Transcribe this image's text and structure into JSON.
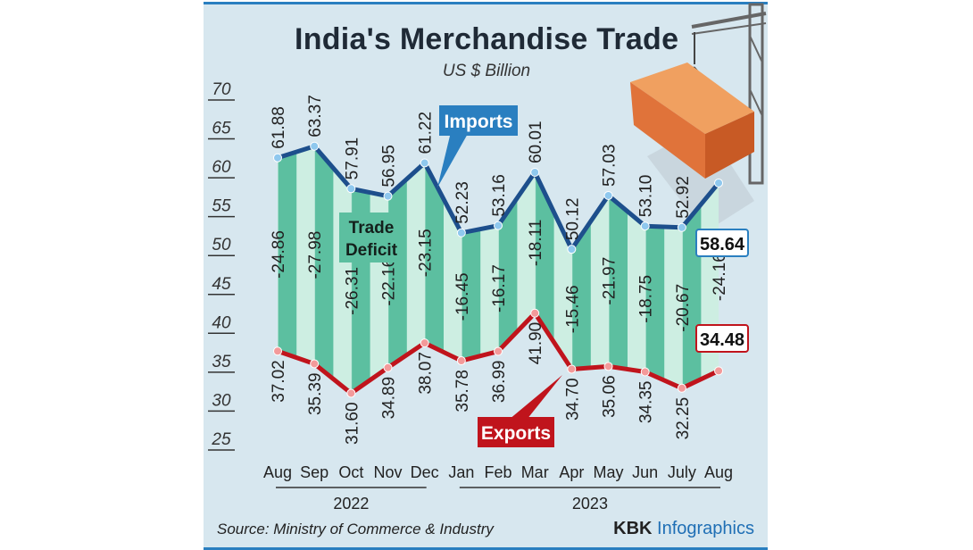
{
  "chart_data": {
    "type": "line",
    "title": "India's Merchandise Trade",
    "subtitle": "US $ Billion",
    "categories": [
      "Aug",
      "Sep",
      "Oct",
      "Nov",
      "Dec",
      "Jan",
      "Feb",
      "Mar",
      "Apr",
      "May",
      "Jun",
      "July",
      "Aug"
    ],
    "year_groups": [
      {
        "label": "2022",
        "from": 0,
        "to": 4
      },
      {
        "label": "2023",
        "from": 5,
        "to": 12
      }
    ],
    "ylim": [
      25,
      70
    ],
    "yticks": [
      70,
      65,
      60,
      55,
      50,
      45,
      40,
      35,
      30,
      25
    ],
    "series": [
      {
        "name": "Imports",
        "color": "#1d4f8c",
        "values": [
          61.88,
          63.37,
          57.91,
          56.95,
          61.22,
          52.23,
          53.16,
          60.01,
          50.12,
          57.03,
          53.1,
          52.92,
          58.64
        ],
        "labels": [
          "61.88",
          "63.37",
          "57.91",
          "56.95",
          "61.22",
          "52.23",
          "53.16",
          "60.01",
          "50.12",
          "57.03",
          "53.10",
          "52.92",
          "58.64"
        ]
      },
      {
        "name": "Exports",
        "color": "#c0141c",
        "values": [
          37.02,
          35.39,
          31.6,
          34.89,
          38.07,
          35.78,
          36.99,
          41.9,
          34.7,
          35.06,
          34.35,
          32.25,
          34.48
        ],
        "labels": [
          "37.02",
          "35.39",
          "31.60",
          "34.89",
          "38.07",
          "35.78",
          "36.99",
          "41.90",
          "34.70",
          "35.06",
          "34.35",
          "32.25",
          "34.48"
        ]
      },
      {
        "name": "Trade Deficit",
        "color": "#5cbfa0",
        "values": [
          -24.86,
          -27.98,
          -26.31,
          -22.16,
          -23.15,
          -16.45,
          -16.17,
          -18.11,
          -15.46,
          -21.97,
          -18.75,
          -20.67,
          -24.16
        ],
        "labels": [
          "-24.86",
          "-27.98",
          "-26.31",
          "-22.16",
          "-23.15",
          "-16.45",
          "-16.17",
          "-18.11",
          "-15.46",
          "-21.97",
          "-18.75",
          "-20.67",
          "-24.16"
        ]
      }
    ],
    "annotations": {
      "deficit_label_1": "Trade",
      "deficit_label_2": "Deficit"
    },
    "source": "Source: Ministry of Commerce & Industry",
    "credit_a": "KBK ",
    "credit_b": "Infographics"
  }
}
